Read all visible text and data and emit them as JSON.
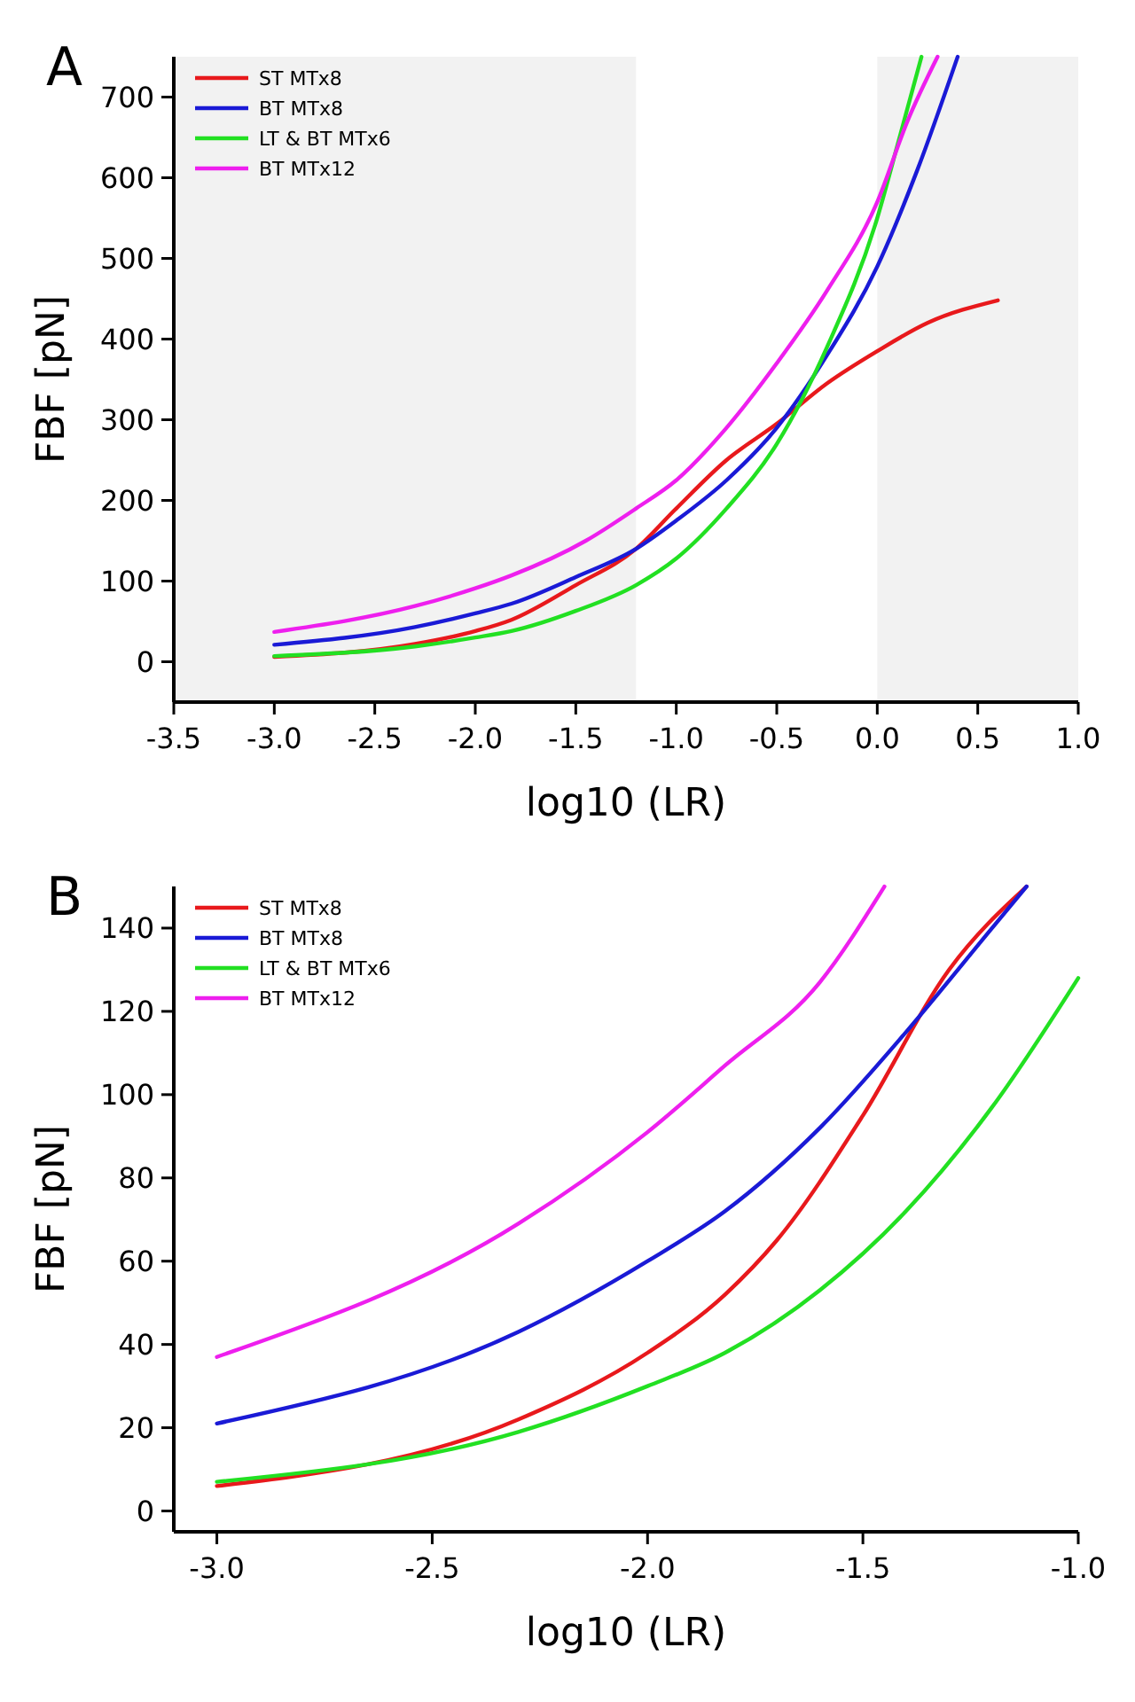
{
  "chart_data": [
    {
      "type": "line",
      "title": "A",
      "xlabel": "log10 (LR)",
      "ylabel": "FBF [pN]",
      "xlim": [
        -3.5,
        1
      ],
      "ylim": [
        -50,
        750
      ],
      "xticks": [
        {
          "value": -3.5,
          "label": "-3.5"
        },
        {
          "value": -3,
          "label": "-3.0"
        },
        {
          "value": -2.5,
          "label": "-2.5"
        },
        {
          "value": -2,
          "label": "-2.0"
        },
        {
          "value": -1.5,
          "label": "-1.5"
        },
        {
          "value": -1,
          "label": "-1.0"
        },
        {
          "value": -0.5,
          "label": "-0.5"
        },
        {
          "value": 0,
          "label": "0.0"
        },
        {
          "value": 0.5,
          "label": "0.5"
        },
        {
          "value": 1,
          "label": "1.0"
        }
      ],
      "yticks": [
        0,
        100,
        200,
        300,
        400,
        500,
        600,
        700
      ],
      "grid": false,
      "legend": "top left",
      "line_style": "solid",
      "bands": [
        {
          "axis": "x",
          "from": -3.5,
          "to": -1.2,
          "color": "#f2f2f2"
        },
        {
          "axis": "x",
          "from": 0,
          "to": 1,
          "color": "#f2f2f2"
        }
      ],
      "series": [
        {
          "name": "ST MTx8",
          "color": "#e8191c",
          "x": [
            -3,
            -2.3,
            -2,
            -1.82,
            -1.5,
            -1.2,
            -1,
            -0.75,
            -0.5,
            -0.25,
            0,
            0.25,
            0.6
          ],
          "values": [
            6,
            22,
            38,
            52,
            95,
            140,
            190,
            250,
            295,
            345,
            385,
            420,
            448
          ]
        },
        {
          "name": "BT MTx8",
          "color": "#1a1ad6",
          "x": [
            -3,
            -2.3,
            -2,
            -1.82,
            -1.5,
            -1.2,
            -1,
            -0.75,
            -0.5,
            -0.25,
            0,
            0.2,
            0.4
          ],
          "values": [
            21,
            43,
            60,
            72,
            105,
            140,
            175,
            225,
            290,
            380,
            490,
            610,
            750
          ]
        },
        {
          "name": "LT & BT MTx6",
          "color": "#22e022",
          "x": [
            -3,
            -2.3,
            -2,
            -1.82,
            -1.5,
            -1.2,
            -1,
            -0.75,
            -0.5,
            -0.25,
            0,
            0.1,
            0.22
          ],
          "values": [
            7,
            19,
            30,
            38,
            63,
            95,
            128,
            190,
            270,
            390,
            550,
            640,
            750
          ]
        },
        {
          "name": "BT MTx12",
          "color": "#ee1fee",
          "x": [
            -3,
            -2.3,
            -2,
            -1.82,
            -1.45,
            -1.2,
            -1,
            -0.75,
            -0.5,
            -0.25,
            0,
            0.15,
            0.3
          ],
          "values": [
            37,
            69,
            91,
            107,
            150,
            190,
            225,
            290,
            370,
            460,
            570,
            670,
            750
          ]
        }
      ]
    },
    {
      "type": "line",
      "title": "B",
      "xlabel": "log10 (LR)",
      "ylabel": "FBF [pN]",
      "xlim": [
        -3.1,
        -1
      ],
      "ylim": [
        -5,
        150
      ],
      "xticks": [
        {
          "value": -3,
          "label": "-3.0"
        },
        {
          "value": -2.5,
          "label": "-2.5"
        },
        {
          "value": -2,
          "label": "-2.0"
        },
        {
          "value": -1.5,
          "label": "-1.5"
        },
        {
          "value": -1,
          "label": "-1.0"
        }
      ],
      "yticks": [
        0,
        20,
        40,
        60,
        80,
        100,
        120,
        140
      ],
      "grid": false,
      "legend": "top left",
      "line_style": "solid",
      "series": [
        {
          "name": "ST MTx8",
          "color": "#e8191c",
          "x": [
            -3,
            -2.3,
            -2,
            -1.82,
            -1.7,
            -1.5,
            -1.3,
            -1.12
          ],
          "values": [
            6,
            22,
            38,
            52,
            65,
            95,
            130,
            150
          ]
        },
        {
          "name": "BT MTx8",
          "color": "#1a1ad6",
          "x": [
            -3,
            -2.3,
            -2,
            -1.82,
            -1.6,
            -1.4,
            -1.2,
            -1.12
          ],
          "values": [
            21,
            43,
            60,
            72,
            92,
            115,
            140,
            150
          ]
        },
        {
          "name": "LT & BT MTx6",
          "color": "#22e022",
          "x": [
            -3,
            -2.3,
            -2,
            -1.82,
            -1.6,
            -1.4,
            -1.2,
            -1
          ],
          "values": [
            7,
            19,
            30,
            38,
            53,
            72,
            97,
            128
          ]
        },
        {
          "name": "BT MTx12",
          "color": "#ee1fee",
          "x": [
            -3,
            -2.3,
            -2,
            -1.82,
            -1.6,
            -1.45
          ],
          "values": [
            37,
            69,
            91,
            107,
            127,
            150
          ]
        }
      ]
    }
  ]
}
